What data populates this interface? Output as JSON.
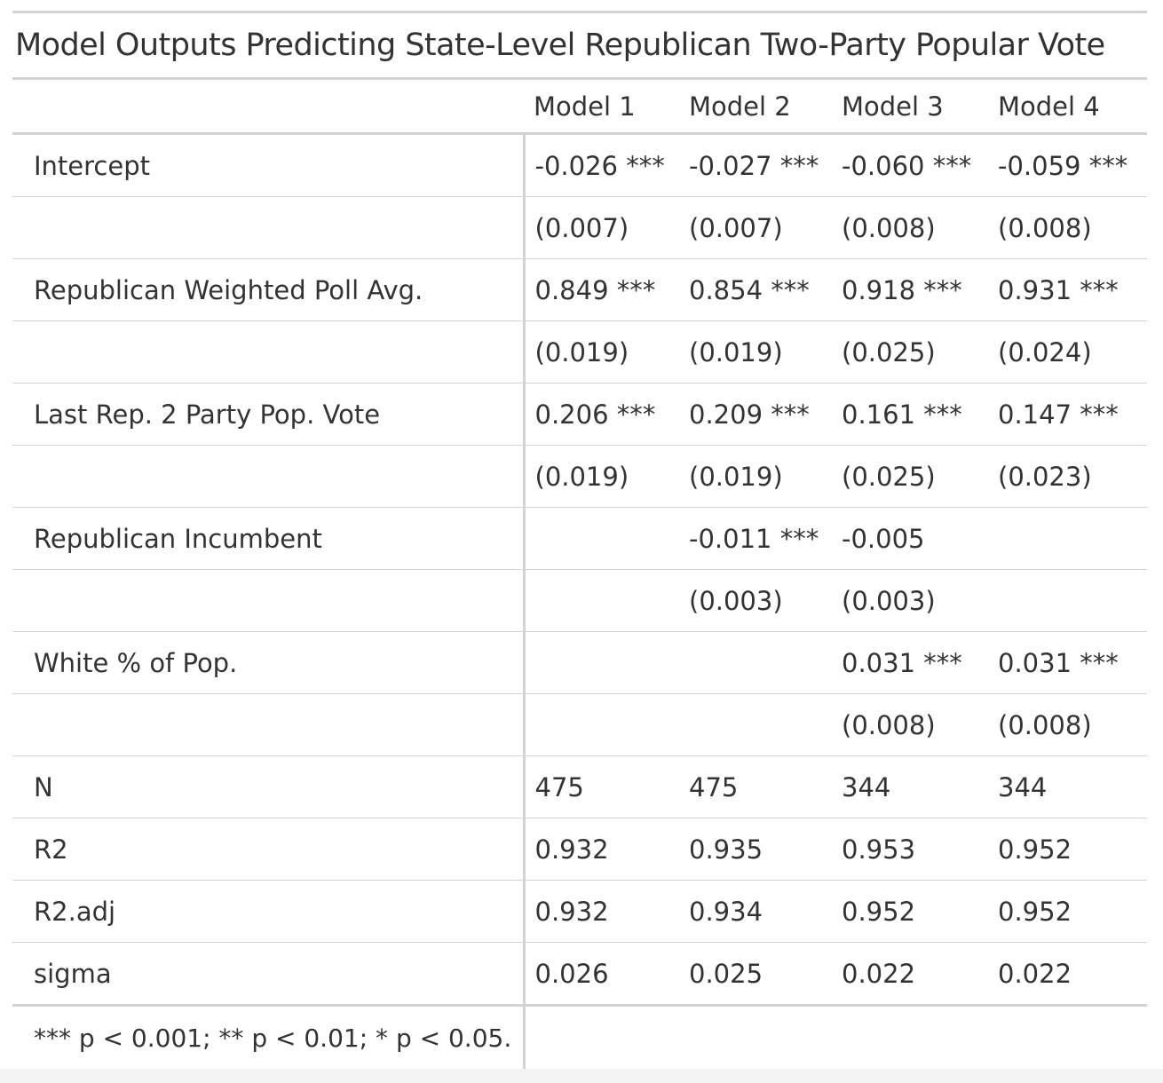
{
  "table": {
    "title": "Model Outputs Predicting State-Level Republican Two-Party Popular Vote",
    "columns": [
      "",
      "Model 1",
      "Model 2",
      "Model 3",
      "Model 4"
    ],
    "rows": [
      {
        "label": "Intercept",
        "values": [
          "-0.026 ***",
          "-0.027 ***",
          "-0.060 ***",
          "-0.059 ***"
        ]
      },
      {
        "label": "",
        "values": [
          "(0.007)",
          "(0.007)",
          "(0.008)",
          "(0.008)"
        ]
      },
      {
        "label": "Republican Weighted Poll Avg.",
        "values": [
          "0.849 ***",
          "0.854 ***",
          "0.918 ***",
          "0.931 ***"
        ]
      },
      {
        "label": "",
        "values": [
          "(0.019)",
          "(0.019)",
          "(0.025)",
          "(0.024)"
        ]
      },
      {
        "label": "Last Rep. 2 Party Pop. Vote",
        "values": [
          "0.206 ***",
          "0.209 ***",
          "0.161 ***",
          "0.147 ***"
        ]
      },
      {
        "label": "",
        "values": [
          "(0.019)",
          "(0.019)",
          "(0.025)",
          "(0.023)"
        ]
      },
      {
        "label": "Republican Incumbent",
        "values": [
          "",
          "-0.011 ***",
          "-0.005",
          ""
        ]
      },
      {
        "label": "",
        "values": [
          "",
          "(0.003)",
          "(0.003)",
          ""
        ]
      },
      {
        "label": "White % of Pop.",
        "values": [
          "",
          "",
          "0.031 ***",
          "0.031 ***"
        ]
      },
      {
        "label": "",
        "values": [
          "",
          "",
          "(0.008)",
          "(0.008)"
        ]
      },
      {
        "label": "N",
        "values": [
          "475",
          "475",
          "344",
          "344"
        ]
      },
      {
        "label": "R2",
        "values": [
          "0.932",
          "0.935",
          "0.953",
          "0.952"
        ]
      },
      {
        "label": "R2.adj",
        "values": [
          "0.932",
          "0.934",
          "0.952",
          "0.952"
        ]
      },
      {
        "label": "sigma",
        "values": [
          "0.026",
          "0.025",
          "0.022",
          "0.022"
        ]
      }
    ],
    "footnote": "*** p < 0.001; ** p < 0.01; * p < 0.05."
  }
}
